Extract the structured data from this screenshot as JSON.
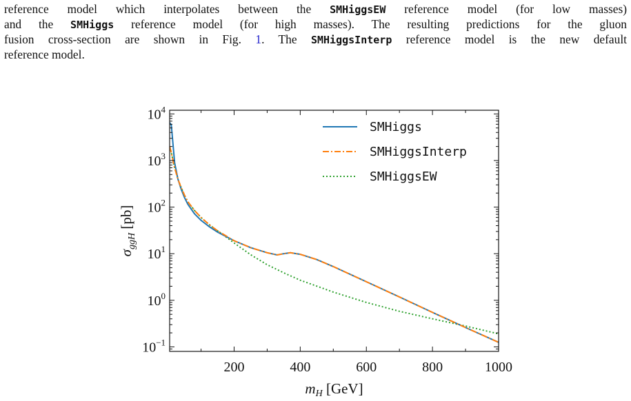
{
  "paragraph": {
    "line1_a": "reference model which interpolates between the ",
    "line1_code": "SMHiggsEW",
    "line1_b": " reference model (for low masses)",
    "line2_a": "and the ",
    "line2_code": "SMHiggs",
    "line2_b": " reference model (for high masses). The resulting predictions for the gluon",
    "line3_a": "fusion cross-section are shown in Fig. ",
    "line3_ref": "1",
    "line3_b": ". The ",
    "line3_code": "SMHiggsInterp",
    "line3_c": " reference model is the new default",
    "line4": "reference model."
  },
  "chart_data": {
    "type": "line",
    "title": "",
    "xlabel": "m_H [GeV]",
    "ylabel": "σ_ggH [pb]",
    "xlim": [
      5,
      1000
    ],
    "ylim": [
      0.08,
      12000
    ],
    "yscale": "log",
    "legend_position": "top-right",
    "x_ticks": [
      200,
      400,
      600,
      800,
      1000
    ],
    "y_ticks": [
      {
        "base": "10",
        "exp": "−1",
        "value": 0.1
      },
      {
        "base": "10",
        "exp": "0",
        "value": 1
      },
      {
        "base": "10",
        "exp": "1",
        "value": 10
      },
      {
        "base": "10",
        "exp": "2",
        "value": 100
      },
      {
        "base": "10",
        "exp": "3",
        "value": 1000
      },
      {
        "base": "10",
        "exp": "4",
        "value": 10000
      }
    ],
    "series": [
      {
        "name": "SMHiggs",
        "color": "#1f77b4",
        "style": "solid",
        "x": [
          5,
          10,
          15,
          20,
          30,
          40,
          50,
          60,
          80,
          100,
          125,
          150,
          200,
          250,
          300,
          330,
          350,
          370,
          400,
          450,
          500,
          600,
          700,
          800,
          900,
          1000
        ],
        "y": [
          6500,
          5800,
          2300,
          900,
          400,
          240,
          160,
          115,
          72,
          52,
          38,
          29,
          19,
          13.5,
          10.5,
          9.4,
          10.0,
          10.5,
          9.7,
          7.5,
          5.3,
          2.5,
          1.18,
          0.55,
          0.26,
          0.125
        ]
      },
      {
        "name": "SMHiggsInterp",
        "color": "#ff7f0e",
        "style": "dashdot",
        "x": [
          5,
          10,
          15,
          20,
          30,
          40,
          50,
          60,
          80,
          100,
          125,
          150,
          200,
          250,
          300,
          330,
          350,
          370,
          400,
          450,
          500,
          600,
          700,
          800,
          900,
          1000
        ],
        "y": [
          2000,
          1500,
          1000,
          700,
          400,
          260,
          180,
          130,
          85,
          60,
          42,
          31,
          19,
          13.5,
          10.5,
          9.4,
          10.0,
          10.5,
          9.7,
          7.5,
          5.3,
          2.5,
          1.18,
          0.55,
          0.26,
          0.125
        ]
      },
      {
        "name": "SMHiggsEW",
        "color": "#2ca02c",
        "style": "dotted",
        "x": [
          5,
          10,
          15,
          20,
          30,
          40,
          50,
          60,
          80,
          100,
          125,
          150,
          200,
          250,
          300,
          350,
          400,
          500,
          600,
          700,
          800,
          900,
          1000
        ],
        "y": [
          2000,
          1500,
          1000,
          700,
          400,
          260,
          180,
          130,
          85,
          60,
          42,
          31,
          17,
          9.5,
          5.8,
          3.9,
          2.7,
          1.5,
          0.9,
          0.58,
          0.4,
          0.28,
          0.19
        ]
      }
    ]
  }
}
